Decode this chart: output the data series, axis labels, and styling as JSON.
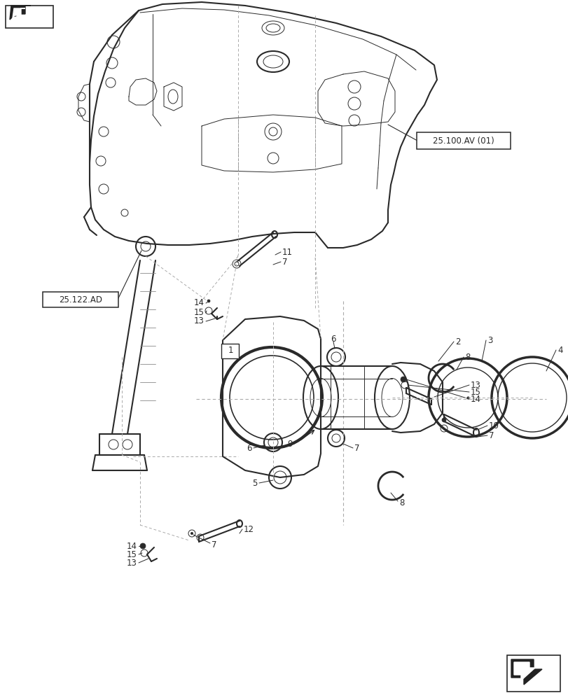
{
  "background_color": "#ffffff",
  "fig_width": 8.12,
  "fig_height": 10.0,
  "dpi": 100,
  "label_25100AV": "25.100.AV (01)",
  "label_25122AD": "25.122.AD",
  "line_color": "#2a2a2a",
  "gray_color": "#888888"
}
